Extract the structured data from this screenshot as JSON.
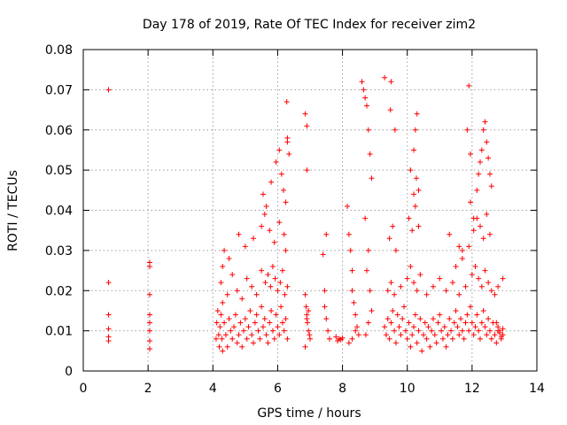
{
  "chart_data": {
    "type": "scatter",
    "title": "Day 178 of 2019, Rate Of TEC Index for receiver zim2",
    "xlabel": "GPS time / hours",
    "ylabel": "ROTI / TECUs",
    "xlim": [
      0,
      14
    ],
    "ylim": [
      0,
      0.08
    ],
    "xticks": [
      0,
      2,
      4,
      6,
      8,
      10,
      12,
      14
    ],
    "xtick_labels": [
      "0",
      "2",
      "4",
      "6",
      "8",
      "10",
      "12",
      "14"
    ],
    "yticks": [
      0,
      0.01,
      0.02,
      0.03,
      0.04,
      0.05,
      0.06,
      0.07,
      0.08
    ],
    "ytick_labels": [
      "0",
      "0.01",
      "0.02",
      "0.03",
      "0.04",
      "0.05",
      "0.06",
      "0.07",
      "0.08"
    ],
    "grid": true,
    "marker": "+",
    "series": [
      {
        "name": "ROTI",
        "color": "#ff0000",
        "x": [
          0.78,
          0.78,
          0.78,
          0.78,
          0.78,
          0.78,
          2.05,
          2.05,
          2.05,
          2.05,
          2.05,
          2.05,
          2.05,
          2.05,
          4.1,
          4.12,
          4.15,
          4.18,
          4.2,
          4.22,
          4.25,
          4.28,
          4.3,
          4.3,
          4.35,
          4.4,
          4.45,
          4.5,
          4.55,
          4.6,
          4.65,
          4.7,
          4.75,
          4.8,
          4.85,
          4.9,
          4.95,
          5.0,
          5.05,
          5.1,
          5.15,
          5.2,
          5.25,
          5.3,
          5.35,
          5.4,
          5.45,
          5.5,
          5.55,
          5.6,
          5.65,
          5.7,
          5.75,
          5.8,
          5.85,
          5.9,
          5.95,
          6.0,
          6.05,
          6.1,
          6.15,
          6.2,
          6.25,
          6.3,
          4.25,
          4.3,
          4.45,
          4.6,
          4.75,
          4.9,
          5.05,
          5.2,
          5.35,
          5.5,
          5.62,
          5.7,
          5.78,
          5.85,
          5.92,
          6.0,
          6.08,
          6.15,
          6.22,
          6.3,
          4.35,
          4.5,
          4.8,
          5.0,
          5.25,
          5.5,
          5.6,
          5.75,
          5.9,
          6.05,
          6.2,
          6.25,
          5.55,
          5.65,
          5.8,
          5.95,
          6.05,
          6.12,
          6.18,
          6.25,
          6.3,
          6.35,
          6.28,
          6.3,
          6.85,
          6.9,
          6.9,
          6.85,
          6.88,
          6.9,
          6.92,
          6.95,
          6.98,
          7.0,
          6.85,
          6.9,
          6.95,
          7.4,
          7.45,
          7.5,
          7.55,
          7.6,
          7.5,
          7.45,
          7.8,
          7.85,
          7.9,
          7.95,
          8.0,
          8.15,
          8.2,
          8.25,
          8.3,
          8.35,
          8.4,
          8.45,
          8.5,
          8.2,
          8.3,
          8.4,
          8.3,
          8.6,
          8.65,
          8.7,
          8.75,
          8.8,
          8.85,
          8.9,
          8.7,
          8.8,
          8.75,
          8.85,
          8.9,
          8.8,
          8.72,
          9.3,
          9.35,
          9.4,
          9.45,
          9.5,
          9.55,
          9.6,
          9.65,
          9.7,
          9.75,
          9.8,
          9.85,
          9.9,
          9.95,
          10.0,
          10.05,
          10.1,
          10.15,
          10.2,
          10.25,
          10.3,
          10.35,
          10.4,
          10.45,
          10.5,
          10.55,
          10.6,
          10.65,
          10.7,
          10.75,
          10.8,
          10.85,
          10.9,
          10.95,
          11.0,
          11.05,
          11.1,
          11.15,
          11.2,
          11.25,
          11.3,
          11.35,
          11.4,
          11.45,
          11.5,
          11.55,
          11.6,
          11.65,
          11.7,
          11.75,
          11.8,
          11.85,
          11.9,
          11.95,
          12.0,
          12.05,
          12.1,
          12.15,
          12.2,
          12.25,
          12.3,
          12.35,
          12.4,
          12.45,
          12.5,
          12.55,
          12.6,
          12.65,
          12.7,
          12.75,
          12.8,
          12.85,
          12.9,
          12.95,
          9.4,
          9.5,
          9.6,
          9.8,
          10.0,
          10.1,
          10.2,
          10.3,
          10.4,
          10.6,
          10.8,
          11.0,
          11.2,
          11.4,
          11.6,
          11.8,
          12.0,
          12.1,
          12.2,
          12.3,
          12.4,
          12.5,
          12.6,
          12.7,
          12.8,
          9.45,
          9.55,
          9.65,
          10.05,
          10.15,
          10.25,
          10.35,
          11.3,
          11.7,
          11.9,
          12.05,
          12.15,
          12.25,
          12.35,
          12.45,
          12.55,
          9.3,
          9.48,
          9.5,
          9.62,
          10.1,
          10.2,
          10.25,
          10.3,
          10.35,
          10.2,
          10.28,
          11.85,
          11.9,
          11.95,
          12.15,
          12.2,
          12.25,
          12.3,
          12.35,
          12.4,
          12.45,
          12.5,
          12.55,
          12.6,
          11.5,
          11.6,
          11.7,
          11.95,
          12.05,
          12.95,
          12.75,
          12.8,
          12.85,
          12.9,
          12.95
        ],
        "y": [
          0.07,
          0.022,
          0.014,
          0.0105,
          0.0085,
          0.0075,
          0.027,
          0.026,
          0.019,
          0.014,
          0.012,
          0.01,
          0.0075,
          0.0055,
          0.008,
          0.012,
          0.015,
          0.009,
          0.006,
          0.011,
          0.014,
          0.008,
          0.005,
          0.017,
          0.012,
          0.009,
          0.006,
          0.013,
          0.01,
          0.008,
          0.011,
          0.014,
          0.007,
          0.009,
          0.012,
          0.006,
          0.01,
          0.013,
          0.008,
          0.011,
          0.015,
          0.009,
          0.007,
          0.012,
          0.014,
          0.01,
          0.008,
          0.016,
          0.011,
          0.013,
          0.009,
          0.007,
          0.012,
          0.015,
          0.01,
          0.008,
          0.014,
          0.011,
          0.009,
          0.016,
          0.012,
          0.01,
          0.013,
          0.008,
          0.022,
          0.026,
          0.019,
          0.024,
          0.02,
          0.018,
          0.023,
          0.021,
          0.019,
          0.025,
          0.022,
          0.024,
          0.021,
          0.026,
          0.023,
          0.02,
          0.022,
          0.025,
          0.019,
          0.021,
          0.03,
          0.028,
          0.034,
          0.031,
          0.033,
          0.036,
          0.039,
          0.035,
          0.032,
          0.037,
          0.034,
          0.03,
          0.044,
          0.041,
          0.047,
          0.052,
          0.055,
          0.049,
          0.045,
          0.042,
          0.057,
          0.054,
          0.067,
          0.058,
          0.064,
          0.061,
          0.05,
          0.019,
          0.016,
          0.014,
          0.012,
          0.01,
          0.009,
          0.008,
          0.006,
          0.013,
          0.015,
          0.029,
          0.016,
          0.013,
          0.01,
          0.008,
          0.034,
          0.02,
          0.0085,
          0.0075,
          0.008,
          0.0078,
          0.0082,
          0.041,
          0.034,
          0.03,
          0.02,
          0.017,
          0.014,
          0.011,
          0.009,
          0.007,
          0.008,
          0.01,
          0.025,
          0.072,
          0.07,
          0.068,
          0.066,
          0.06,
          0.054,
          0.048,
          0.038,
          0.03,
          0.025,
          0.02,
          0.015,
          0.012,
          0.009,
          0.011,
          0.009,
          0.013,
          0.008,
          0.012,
          0.015,
          0.01,
          0.007,
          0.014,
          0.011,
          0.009,
          0.013,
          0.016,
          0.01,
          0.008,
          0.012,
          0.006,
          0.009,
          0.011,
          0.014,
          0.007,
          0.01,
          0.013,
          0.005,
          0.009,
          0.012,
          0.008,
          0.011,
          0.006,
          0.01,
          0.013,
          0.009,
          0.007,
          0.012,
          0.014,
          0.01,
          0.008,
          0.011,
          0.006,
          0.009,
          0.013,
          0.01,
          0.008,
          0.012,
          0.015,
          0.011,
          0.009,
          0.013,
          0.01,
          0.008,
          0.012,
          0.014,
          0.01,
          0.016,
          0.012,
          0.009,
          0.011,
          0.014,
          0.01,
          0.008,
          0.012,
          0.015,
          0.011,
          0.009,
          0.013,
          0.01,
          0.008,
          0.012,
          0.009,
          0.007,
          0.011,
          0.01,
          0.008,
          0.009,
          0.02,
          0.022,
          0.019,
          0.021,
          0.023,
          0.026,
          0.022,
          0.02,
          0.024,
          0.019,
          0.021,
          0.023,
          0.02,
          0.022,
          0.019,
          0.021,
          0.024,
          0.026,
          0.023,
          0.021,
          0.025,
          0.022,
          0.02,
          0.019,
          0.021,
          0.033,
          0.036,
          0.03,
          0.038,
          0.035,
          0.041,
          0.036,
          0.034,
          0.03,
          0.031,
          0.035,
          0.038,
          0.036,
          0.033,
          0.039,
          0.034,
          0.073,
          0.065,
          0.072,
          0.06,
          0.05,
          0.055,
          0.06,
          0.064,
          0.045,
          0.044,
          0.048,
          0.06,
          0.071,
          0.054,
          0.045,
          0.049,
          0.052,
          0.055,
          0.06,
          0.062,
          0.057,
          0.053,
          0.049,
          0.046,
          0.026,
          0.031,
          0.028,
          0.042,
          0.038,
          0.023,
          0.012,
          0.01,
          0.0095,
          0.0085,
          0.0105
        ]
      }
    ]
  }
}
